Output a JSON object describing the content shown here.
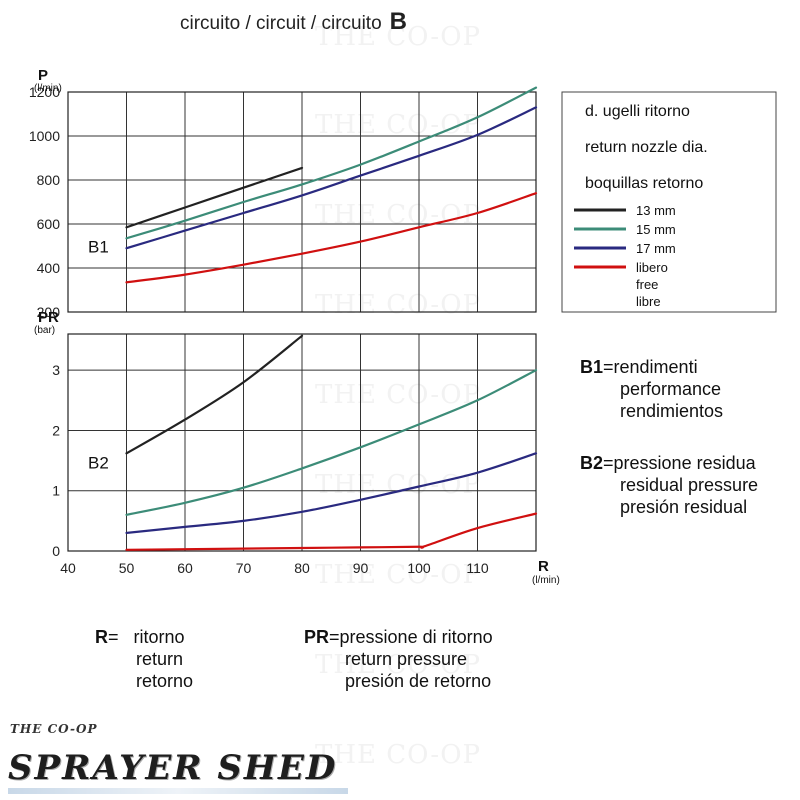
{
  "header": {
    "title": "circuito / circuit / circuito",
    "circuit_letter": "B"
  },
  "chart_data": [
    {
      "id": "B1",
      "type": "line",
      "panel_label": "B1",
      "ylabel": "P",
      "yunit": "(l/min)",
      "ylim": [
        200,
        1200
      ],
      "yticks": [
        200,
        400,
        600,
        800,
        1000,
        1200
      ],
      "xlim": [
        40,
        120
      ],
      "xticks": [
        40,
        50,
        60,
        70,
        80,
        90,
        100,
        110
      ],
      "grid": true,
      "series": [
        {
          "name": "13 mm",
          "color": "#222222",
          "x": [
            50,
            60,
            70,
            80
          ],
          "y": [
            585,
            675,
            765,
            855
          ]
        },
        {
          "name": "15 mm",
          "color": "#3c8c78",
          "x": [
            50,
            60,
            70,
            80,
            90,
            100,
            110,
            120
          ],
          "y": [
            535,
            615,
            700,
            780,
            870,
            975,
            1085,
            1220
          ]
        },
        {
          "name": "17 mm",
          "color": "#2a2a80",
          "x": [
            50,
            60,
            70,
            80,
            90,
            100,
            110,
            120
          ],
          "y": [
            490,
            570,
            650,
            730,
            820,
            910,
            1005,
            1130
          ]
        },
        {
          "name": "libero / free / libre",
          "color": "#d01010",
          "x": [
            50,
            60,
            70,
            80,
            90,
            100,
            110,
            120
          ],
          "y": [
            335,
            370,
            415,
            465,
            520,
            585,
            650,
            740
          ]
        }
      ],
      "legend": {
        "title_lines": [
          "d. ugelli ritorno",
          "return nozzle dia.",
          "boquillas retorno"
        ],
        "entries": [
          {
            "label_lines": [
              "13 mm"
            ],
            "color": "#222222"
          },
          {
            "label_lines": [
              "15 mm"
            ],
            "color": "#3c8c78"
          },
          {
            "label_lines": [
              "17 mm"
            ],
            "color": "#2a2a80"
          },
          {
            "label_lines": [
              "libero",
              "free",
              "libre"
            ],
            "color": "#d01010"
          }
        ]
      }
    },
    {
      "id": "B2",
      "type": "line",
      "panel_label": "B2",
      "ylabel": "PR",
      "yunit": "(bar)",
      "ylim": [
        0,
        3.6
      ],
      "yticks": [
        0,
        1,
        2,
        3
      ],
      "xlabel": "R",
      "xunit": "(l/min)",
      "xlim": [
        40,
        120
      ],
      "xticks": [
        40,
        50,
        60,
        70,
        80,
        90,
        100,
        110
      ],
      "grid": true,
      "series": [
        {
          "name": "13 mm",
          "color": "#222222",
          "x": [
            50,
            60,
            70,
            80
          ],
          "y": [
            1.62,
            2.18,
            2.8,
            3.57
          ]
        },
        {
          "name": "15 mm",
          "color": "#3c8c78",
          "x": [
            50,
            60,
            70,
            80,
            90,
            100,
            110,
            120
          ],
          "y": [
            0.6,
            0.8,
            1.05,
            1.37,
            1.72,
            2.1,
            2.5,
            3.0
          ]
        },
        {
          "name": "17 mm",
          "color": "#2a2a80",
          "x": [
            50,
            60,
            70,
            80,
            90,
            100,
            110,
            120
          ],
          "y": [
            0.3,
            0.4,
            0.5,
            0.65,
            0.85,
            1.07,
            1.3,
            1.62
          ]
        },
        {
          "name": "libero / free / libre",
          "color": "#d01010",
          "x": [
            50,
            60,
            70,
            80,
            90,
            100,
            101,
            110,
            120
          ],
          "y": [
            0.02,
            0.03,
            0.04,
            0.05,
            0.06,
            0.07,
            0.08,
            0.38,
            0.62
          ]
        }
      ]
    }
  ],
  "notes": {
    "b1": {
      "key": "B1",
      "lines": [
        "rendimenti",
        "performance",
        "rendimientos"
      ]
    },
    "b2": {
      "key": "B2",
      "lines": [
        "pressione residua",
        "residual pressure",
        "presión residual"
      ]
    },
    "r": {
      "key": "R",
      "lines": [
        "ritorno",
        "return",
        "retorno"
      ]
    },
    "pr": {
      "key": "PR",
      "lines": [
        "pressione di ritorno",
        "return pressure",
        "presión de retorno"
      ]
    }
  },
  "watermark": "THE CO-OP",
  "logo": {
    "top": "THE CO-OP",
    "main": "SPRAYER SHED"
  }
}
